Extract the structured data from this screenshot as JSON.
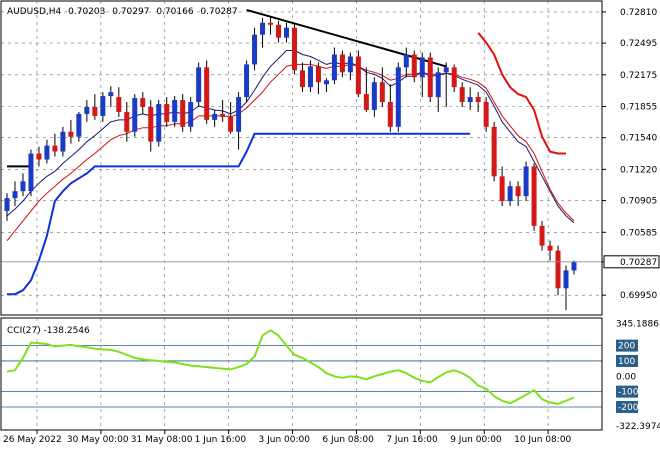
{
  "chart_data": [
    {
      "type": "candlestick",
      "header": {
        "symbol": "AUDUSD,H4",
        "open": "0.70203",
        "high": "0.70297",
        "low": "0.70166",
        "close": "0.70287"
      },
      "ylim": [
        0.6975,
        0.7292
      ],
      "y_ticks": [
        "0.72810",
        "0.72495",
        "0.72175",
        "0.71855",
        "0.71540",
        "0.71220",
        "0.70905",
        "0.70585",
        "0.70287",
        "0.69950"
      ],
      "current_price": "0.70287",
      "x_ticks": [
        "26 May 2022",
        "30 May 00:00",
        "31 May 08:00",
        "1 Jun 16:00",
        "3 Jun 00:00",
        "6 Jun 08:00",
        "7 Jun 16:00",
        "9 Jun 00:00",
        "10 Jun 08:00"
      ],
      "candles": [
        [
          0.708,
          0.7098,
          0.707,
          0.7093
        ],
        [
          0.7093,
          0.711,
          0.7085,
          0.71
        ],
        [
          0.71,
          0.7118,
          0.7095,
          0.711
        ],
        [
          0.71,
          0.7142,
          0.7095,
          0.7138
        ],
        [
          0.7138,
          0.7145,
          0.7125,
          0.7132
        ],
        [
          0.7132,
          0.7152,
          0.7128,
          0.7146
        ],
        [
          0.7146,
          0.7158,
          0.7135,
          0.714
        ],
        [
          0.714,
          0.7165,
          0.7135,
          0.716
        ],
        [
          0.716,
          0.7172,
          0.7148,
          0.7155
        ],
        [
          0.7155,
          0.718,
          0.715,
          0.7178
        ],
        [
          0.7178,
          0.7192,
          0.717,
          0.7185
        ],
        [
          0.7185,
          0.7198,
          0.7172,
          0.7176
        ],
        [
          0.7176,
          0.72,
          0.717,
          0.7196
        ],
        [
          0.7196,
          0.7206,
          0.7185,
          0.72
        ],
        [
          0.7195,
          0.7205,
          0.7175,
          0.718
        ],
        [
          0.718,
          0.719,
          0.715,
          0.716
        ],
        [
          0.716,
          0.7198,
          0.7155,
          0.7194
        ],
        [
          0.7194,
          0.72,
          0.7178,
          0.7185
        ],
        [
          0.7185,
          0.7192,
          0.714,
          0.715
        ],
        [
          0.715,
          0.7192,
          0.7145,
          0.7188
        ],
        [
          0.7188,
          0.7195,
          0.7165,
          0.717
        ],
        [
          0.717,
          0.7196,
          0.7165,
          0.7192
        ],
        [
          0.7192,
          0.7198,
          0.716,
          0.7165
        ],
        [
          0.7165,
          0.7195,
          0.716,
          0.719
        ],
        [
          0.719,
          0.723,
          0.7185,
          0.7225
        ],
        [
          0.7225,
          0.7232,
          0.7168,
          0.7172
        ],
        [
          0.7172,
          0.7182,
          0.7165,
          0.7178
        ],
        [
          0.7178,
          0.7192,
          0.717,
          0.7175
        ],
        [
          0.7175,
          0.719,
          0.7158,
          0.716
        ],
        [
          0.716,
          0.72,
          0.7142,
          0.7195
        ],
        [
          0.7195,
          0.7232,
          0.719,
          0.7228
        ],
        [
          0.7228,
          0.7265,
          0.7222,
          0.7258
        ],
        [
          0.7258,
          0.7275,
          0.7245,
          0.727
        ],
        [
          0.727,
          0.7276,
          0.7258,
          0.7268
        ],
        [
          0.7268,
          0.7272,
          0.725,
          0.7255
        ],
        [
          0.7255,
          0.727,
          0.725,
          0.7265
        ],
        [
          0.7265,
          0.727,
          0.7218,
          0.7222
        ],
        [
          0.7222,
          0.723,
          0.72,
          0.7205
        ],
        [
          0.7205,
          0.7232,
          0.72,
          0.7226
        ],
        [
          0.7226,
          0.723,
          0.7198,
          0.721
        ],
        [
          0.7208,
          0.7214,
          0.72,
          0.7212
        ],
        [
          0.7212,
          0.7245,
          0.7208,
          0.7238
        ],
        [
          0.7238,
          0.7242,
          0.7215,
          0.722
        ],
        [
          0.722,
          0.724,
          0.7212,
          0.7236
        ],
        [
          0.7236,
          0.7242,
          0.7195,
          0.7198
        ],
        [
          0.7198,
          0.7225,
          0.718,
          0.7182
        ],
        [
          0.7182,
          0.7215,
          0.7175,
          0.721
        ],
        [
          0.721,
          0.7225,
          0.7185,
          0.719
        ],
        [
          0.719,
          0.7208,
          0.716,
          0.7165
        ],
        [
          0.7165,
          0.723,
          0.716,
          0.7225
        ],
        [
          0.7225,
          0.7245,
          0.7215,
          0.7238
        ],
        [
          0.7238,
          0.7242,
          0.721,
          0.7215
        ],
        [
          0.7215,
          0.724,
          0.7195,
          0.7235
        ],
        [
          0.7235,
          0.724,
          0.719,
          0.7195
        ],
        [
          0.7195,
          0.7225,
          0.718,
          0.722
        ],
        [
          0.722,
          0.723,
          0.7185,
          0.7225
        ],
        [
          0.7225,
          0.7228,
          0.72,
          0.7205
        ],
        [
          0.7205,
          0.721,
          0.7185,
          0.719
        ],
        [
          0.719,
          0.7205,
          0.7182,
          0.7195
        ],
        [
          0.7195,
          0.72,
          0.718,
          0.719
        ],
        [
          0.719,
          0.7195,
          0.716,
          0.7165
        ],
        [
          0.7165,
          0.717,
          0.711,
          0.7115
        ],
        [
          0.7115,
          0.7125,
          0.7085,
          0.709
        ],
        [
          0.709,
          0.711,
          0.7085,
          0.7105
        ],
        [
          0.7105,
          0.711,
          0.7085,
          0.7095
        ],
        [
          0.7095,
          0.713,
          0.709,
          0.7125
        ],
        [
          0.7125,
          0.7128,
          0.706,
          0.7065
        ],
        [
          0.7065,
          0.707,
          0.704,
          0.7045
        ],
        [
          0.7045,
          0.705,
          0.703,
          0.704
        ],
        [
          0.704,
          0.7045,
          0.6995,
          0.7002
        ],
        [
          0.7002,
          0.7025,
          0.698,
          0.702
        ],
        [
          0.702,
          0.703,
          0.7016,
          0.7029
        ]
      ],
      "indicators": {
        "thin_line_color": "#1a1a70",
        "thin_line": [
          0.7075,
          0.7082,
          0.709,
          0.71,
          0.7108,
          0.7115,
          0.712,
          0.7128,
          0.7135,
          0.7142,
          0.715,
          0.7156,
          0.7163,
          0.717,
          0.7172,
          0.7172,
          0.7176,
          0.7178,
          0.7176,
          0.7178,
          0.7178,
          0.718,
          0.7178,
          0.718,
          0.7186,
          0.7184,
          0.7182,
          0.7181,
          0.7178,
          0.7182,
          0.719,
          0.7202,
          0.7215,
          0.7226,
          0.7234,
          0.7242,
          0.7242,
          0.7238,
          0.7236,
          0.7232,
          0.7228,
          0.723,
          0.7228,
          0.723,
          0.7226,
          0.722,
          0.7218,
          0.7214,
          0.7206,
          0.721,
          0.7216,
          0.7216,
          0.722,
          0.7216,
          0.7217,
          0.7219,
          0.7217,
          0.7213,
          0.721,
          0.7207,
          0.72,
          0.7186,
          0.717,
          0.716,
          0.715,
          0.7145,
          0.713,
          0.7115,
          0.71,
          0.7085,
          0.7075,
          0.7068
        ],
        "red_line_color": "#d01010",
        "red_line": [
          0.705,
          0.706,
          0.707,
          0.708,
          0.709,
          0.7098,
          0.7105,
          0.7112,
          0.7118,
          0.7125,
          0.7132,
          0.7138,
          0.7145,
          0.7152,
          0.7156,
          0.7158,
          0.7162,
          0.7164,
          0.7164,
          0.7166,
          0.7166,
          0.7168,
          0.7168,
          0.717,
          0.7176,
          0.7176,
          0.7176,
          0.7176,
          0.7175,
          0.7178,
          0.7184,
          0.7192,
          0.72,
          0.721,
          0.7218,
          0.7226,
          0.7228,
          0.7228,
          0.7228,
          0.7226,
          0.7224,
          0.7226,
          0.7226,
          0.7228,
          0.7226,
          0.7222,
          0.722,
          0.7217,
          0.7212,
          0.7214,
          0.7218,
          0.7218,
          0.722,
          0.7218,
          0.7218,
          0.7219,
          0.7218,
          0.7215,
          0.7213,
          0.721,
          0.7204,
          0.719,
          0.7176,
          0.7166,
          0.7156,
          0.715,
          0.7138,
          0.712,
          0.7102,
          0.7088,
          0.7078,
          0.707
        ],
        "red_stop_color": "#e01010",
        "red_stop": [
          [
            59,
            0.726
          ],
          [
            60,
            0.725
          ],
          [
            61,
            0.7238
          ],
          [
            62,
            0.7218
          ],
          [
            63,
            0.7205
          ],
          [
            64,
            0.7198
          ],
          [
            65,
            0.7195
          ],
          [
            66,
            0.7182
          ],
          [
            67,
            0.7155
          ],
          [
            68,
            0.714
          ],
          [
            69,
            0.7138
          ],
          [
            70,
            0.7138
          ]
        ],
        "blue_channel_color": "#1030d8",
        "blue_channel": [
          [
            0,
            0.6996
          ],
          [
            1,
            0.6996
          ],
          [
            2,
            0.7
          ],
          [
            3,
            0.701
          ],
          [
            4,
            0.703
          ],
          [
            5,
            0.7055
          ],
          [
            6,
            0.709
          ],
          [
            7,
            0.71
          ],
          [
            8,
            0.7108
          ],
          [
            9,
            0.7113
          ],
          [
            10,
            0.7118
          ],
          [
            11,
            0.7125
          ],
          [
            12,
            0.7125
          ],
          [
            13,
            0.7125
          ],
          [
            14,
            0.7125
          ],
          [
            15,
            0.7125
          ],
          [
            16,
            0.7125
          ],
          [
            17,
            0.7125
          ],
          [
            18,
            0.7125
          ],
          [
            19,
            0.7125
          ],
          [
            20,
            0.7125
          ],
          [
            21,
            0.7125
          ],
          [
            22,
            0.7125
          ],
          [
            23,
            0.7125
          ],
          [
            24,
            0.7125
          ],
          [
            25,
            0.7125
          ],
          [
            26,
            0.7125
          ],
          [
            27,
            0.7125
          ],
          [
            28,
            0.7125
          ],
          [
            29,
            0.7125
          ],
          [
            30,
            0.714
          ],
          [
            31,
            0.7158
          ],
          [
            32,
            0.7158
          ],
          [
            33,
            0.7158
          ],
          [
            34,
            0.7158
          ],
          [
            35,
            0.7158
          ],
          [
            36,
            0.7158
          ],
          [
            37,
            0.7158
          ],
          [
            38,
            0.7158
          ],
          [
            39,
            0.7158
          ],
          [
            40,
            0.7158
          ],
          [
            41,
            0.7158
          ],
          [
            42,
            0.7158
          ],
          [
            43,
            0.7158
          ],
          [
            44,
            0.7158
          ],
          [
            45,
            0.7158
          ],
          [
            46,
            0.7158
          ],
          [
            47,
            0.7158
          ],
          [
            48,
            0.7158
          ],
          [
            49,
            0.7158
          ],
          [
            50,
            0.7158
          ],
          [
            51,
            0.7158
          ],
          [
            52,
            0.7158
          ],
          [
            53,
            0.7158
          ],
          [
            54,
            0.7158
          ],
          [
            55,
            0.7158
          ],
          [
            56,
            0.7158
          ],
          [
            57,
            0.7158
          ],
          [
            58,
            0.7158
          ]
        ],
        "black_level_color": "#000000",
        "black_level": [
          [
            0,
            0.7125
          ],
          [
            3,
            0.7125
          ]
        ],
        "trendline_color": "#000000",
        "trendline": [
          [
            30,
            0.7283
          ],
          [
            55,
            0.7226
          ]
        ]
      }
    },
    {
      "type": "line",
      "title": "CCI(27) -138.2546",
      "ylim": [
        -350,
        380
      ],
      "y_ticks": [
        "345.1886",
        "200",
        "100",
        "0.00",
        "-100",
        "-200",
        "-322.3974"
      ],
      "ref_levels": [
        200,
        100,
        -100,
        -200
      ],
      "series": [
        {
          "color": "#80e020",
          "values": [
            30,
            40,
            120,
            220,
            215,
            210,
            195,
            200,
            205,
            195,
            190,
            180,
            175,
            172,
            160,
            140,
            120,
            110,
            105,
            100,
            95,
            90,
            80,
            70,
            65,
            60,
            55,
            50,
            45,
            60,
            80,
            130,
            265,
            300,
            265,
            200,
            140,
            120,
            90,
            60,
            20,
            0,
            -10,
            0,
            -5,
            -20,
            0,
            15,
            30,
            40,
            20,
            -10,
            -30,
            -40,
            -5,
            25,
            40,
            20,
            -10,
            -60,
            -80,
            -130,
            -160,
            -175,
            -150,
            -120,
            -90,
            -150,
            -170,
            -180,
            -160,
            -138
          ]
        }
      ]
    }
  ]
}
